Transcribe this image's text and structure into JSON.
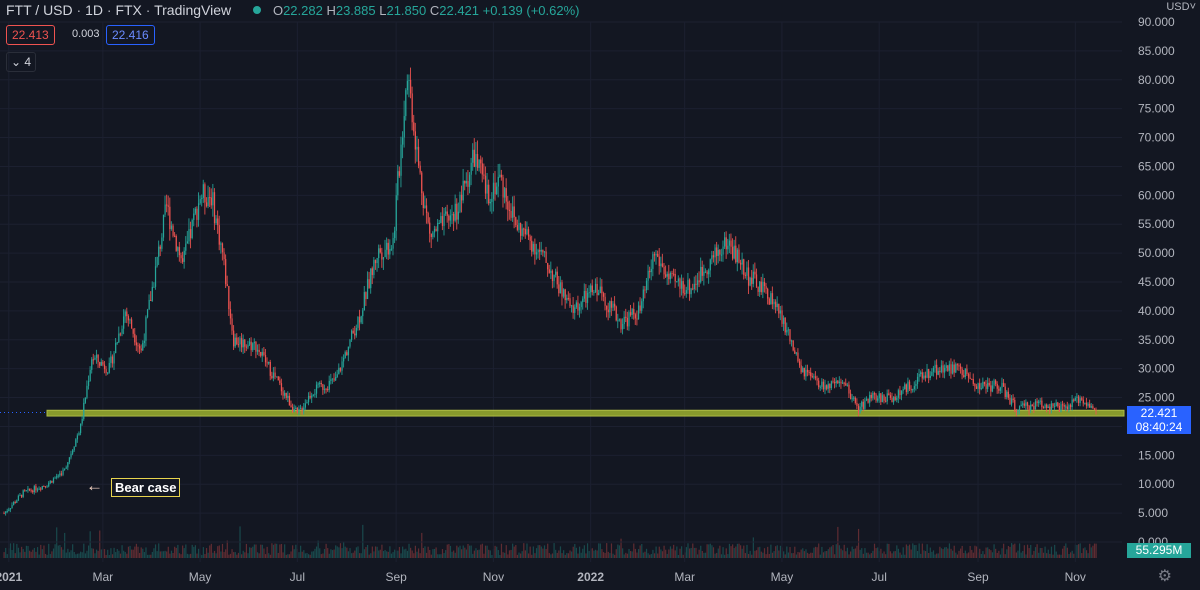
{
  "header": {
    "symbol": "FTT / USD",
    "interval": "1D",
    "exchange": "FTX",
    "source": "TradingView",
    "open_label": "O",
    "open": "22.282",
    "high_label": "H",
    "high": "23.885",
    "low_label": "L",
    "low": "21.850",
    "close_label": "C",
    "close": "22.421",
    "change": "+0.139 (+0.62%)"
  },
  "prices": {
    "bid": "22.413",
    "spread": "0.003",
    "ask": "22.416"
  },
  "indicators_toggle": "4",
  "currency": "USD",
  "price_tag": {
    "price": "22.421",
    "countdown": "08:40:24"
  },
  "volume_tag": "55.295M",
  "annotation": {
    "text": "Bear case",
    "arrow": "←"
  },
  "colors": {
    "background": "#131722",
    "up": "#26a69a",
    "down": "#ef5350",
    "zone": "#9db12e",
    "accent": "#2962ff",
    "annotation_border": "#e8d44d"
  },
  "chart_data": {
    "type": "candlestick",
    "y_ticks": [
      "0.000",
      "5.000",
      "10.000",
      "15.000",
      "20.000",
      "25.000",
      "30.000",
      "35.000",
      "40.000",
      "45.000",
      "50.000",
      "55.000",
      "60.000",
      "65.000",
      "70.000",
      "75.000",
      "80.000",
      "85.000",
      "90.000"
    ],
    "ylim": [
      0,
      90
    ],
    "x_ticks": [
      {
        "label": "2021",
        "date": "2021-01-01",
        "bold": true
      },
      {
        "label": "Mar",
        "date": "2021-03-01"
      },
      {
        "label": "May",
        "date": "2021-05-01"
      },
      {
        "label": "Jul",
        "date": "2021-07-01"
      },
      {
        "label": "Sep",
        "date": "2021-09-01"
      },
      {
        "label": "Nov",
        "date": "2021-11-01"
      },
      {
        "label": "2022",
        "date": "2022-01-01",
        "bold": true
      },
      {
        "label": "Mar",
        "date": "2022-03-01"
      },
      {
        "label": "May",
        "date": "2022-05-01"
      },
      {
        "label": "Jul",
        "date": "2022-07-01"
      },
      {
        "label": "Sep",
        "date": "2022-09-01"
      },
      {
        "label": "Nov",
        "date": "2022-11-01"
      }
    ],
    "x_range": [
      "2020-12-29",
      "2022-11-14"
    ],
    "support_zone": [
      21.8,
      22.8
    ],
    "last_price": 22.421,
    "price_path": [
      [
        "2020-12-29",
        5
      ],
      [
        "2021-01-10",
        8.5
      ],
      [
        "2021-01-25",
        10
      ],
      [
        "2021-02-05",
        12.5
      ],
      [
        "2021-02-15",
        20
      ],
      [
        "2021-02-22",
        32
      ],
      [
        "2021-03-05",
        30
      ],
      [
        "2021-03-15",
        40
      ],
      [
        "2021-03-25",
        33
      ],
      [
        "2021-04-10",
        58
      ],
      [
        "2021-04-20",
        48
      ],
      [
        "2021-05-01",
        60
      ],
      [
        "2021-05-08",
        60
      ],
      [
        "2021-05-15",
        50
      ],
      [
        "2021-05-22",
        35
      ],
      [
        "2021-06-05",
        34
      ],
      [
        "2021-06-20",
        27
      ],
      [
        "2021-07-01",
        22
      ],
      [
        "2021-07-10",
        26
      ],
      [
        "2021-07-25",
        28
      ],
      [
        "2021-08-10",
        40
      ],
      [
        "2021-08-20",
        50
      ],
      [
        "2021-08-30",
        52
      ],
      [
        "2021-09-08",
        82
      ],
      [
        "2021-09-15",
        65
      ],
      [
        "2021-09-22",
        53
      ],
      [
        "2021-10-01",
        55
      ],
      [
        "2021-10-10",
        58
      ],
      [
        "2021-10-20",
        67
      ],
      [
        "2021-10-28",
        60
      ],
      [
        "2021-11-05",
        63
      ],
      [
        "2021-11-15",
        55
      ],
      [
        "2021-11-25",
        52
      ],
      [
        "2021-12-05",
        48
      ],
      [
        "2021-12-20",
        40
      ],
      [
        "2022-01-05",
        44
      ],
      [
        "2022-01-20",
        38
      ],
      [
        "2022-02-01",
        40
      ],
      [
        "2022-02-10",
        50
      ],
      [
        "2022-02-20",
        45
      ],
      [
        "2022-03-05",
        44
      ],
      [
        "2022-03-15",
        48
      ],
      [
        "2022-03-28",
        52
      ],
      [
        "2022-04-10",
        46
      ],
      [
        "2022-04-25",
        42
      ],
      [
        "2022-05-05",
        36
      ],
      [
        "2022-05-12",
        30
      ],
      [
        "2022-05-25",
        27
      ],
      [
        "2022-06-10",
        27
      ],
      [
        "2022-06-18",
        23
      ],
      [
        "2022-06-25",
        25
      ],
      [
        "2022-07-10",
        25
      ],
      [
        "2022-07-25",
        28
      ],
      [
        "2022-08-05",
        30
      ],
      [
        "2022-08-20",
        30
      ],
      [
        "2022-09-01",
        27
      ],
      [
        "2022-09-15",
        27
      ],
      [
        "2022-09-25",
        23
      ],
      [
        "2022-10-10",
        24
      ],
      [
        "2022-10-25",
        23
      ],
      [
        "2022-11-05",
        25
      ],
      [
        "2022-11-14",
        22.4
      ]
    ]
  }
}
